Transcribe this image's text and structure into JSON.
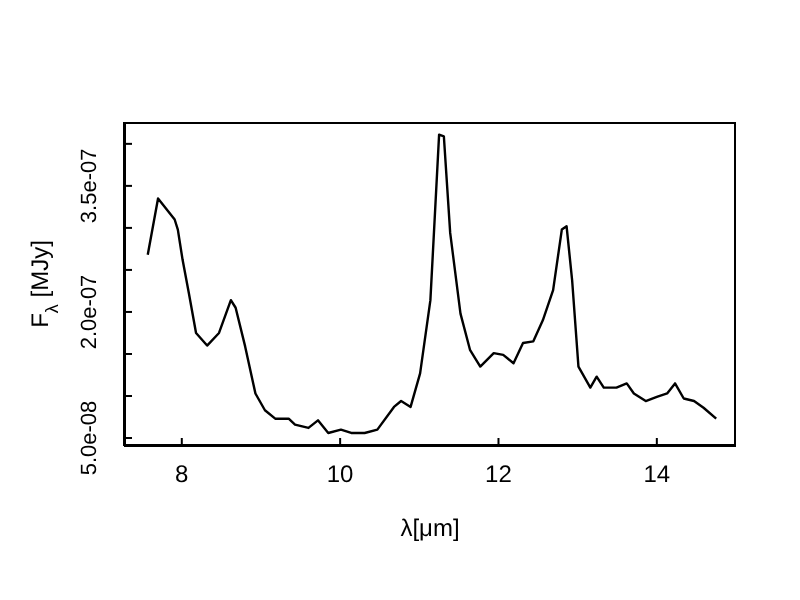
{
  "chart_data": {
    "type": "line",
    "xlabel": "λ[μm]",
    "ylabel": "F$_{λ}$ [MJy]",
    "marker": "none",
    "grid": false,
    "xlim": [
      7.27,
      15.0
    ],
    "xticks": [
      8,
      10,
      12,
      14
    ],
    "ylim": [
      4.05e-08,
      4.26e-07
    ],
    "yticks": [
      {
        "value": 5e-08,
        "label": "5.0e-08"
      },
      {
        "value": 1e-07,
        "label": null
      },
      {
        "value": 1.5e-07,
        "label": null
      },
      {
        "value": 2e-07,
        "label": "2.0e-07"
      },
      {
        "value": 2.5e-07,
        "label": null
      },
      {
        "value": 3e-07,
        "label": null
      },
      {
        "value": 3.5e-07,
        "label": "3.5e-07"
      },
      {
        "value": 4e-07,
        "label": null
      }
    ],
    "x": [
      7.57,
      7.7,
      7.91,
      7.95,
      8.01,
      8.09,
      8.18,
      8.32,
      8.47,
      8.62,
      8.68,
      8.8,
      8.93,
      9.05,
      9.18,
      9.35,
      9.43,
      9.6,
      9.72,
      9.85,
      10.01,
      10.14,
      10.31,
      10.47,
      10.68,
      10.77,
      10.89,
      11.01,
      11.14,
      11.25,
      11.31,
      11.39,
      11.52,
      11.64,
      11.77,
      11.94,
      12.06,
      12.19,
      12.31,
      12.44,
      12.56,
      12.69,
      12.8,
      12.86,
      12.93,
      13.01,
      13.16,
      13.24,
      13.33,
      13.49,
      13.62,
      13.71,
      13.86,
      14.0,
      14.13,
      14.23,
      14.34,
      14.47,
      14.59,
      14.75
    ],
    "series": [
      {
        "color": "#000000",
        "values": [
          2.68e-07,
          3.35e-07,
          3.1e-07,
          2.98e-07,
          2.62e-07,
          2.22e-07,
          1.75e-07,
          1.6e-07,
          1.75e-07,
          2.14e-07,
          2.05e-07,
          1.59e-07,
          1.03e-07,
          8.3e-08,
          7.3e-08,
          7.3e-08,
          6.6e-08,
          6.2e-08,
          7.1e-08,
          5.6e-08,
          6e-08,
          5.6e-08,
          5.6e-08,
          6e-08,
          8.7e-08,
          9.4e-08,
          8.7e-08,
          1.27e-07,
          2.14e-07,
          4.11e-07,
          4.09e-07,
          2.94e-07,
          1.98e-07,
          1.55e-07,
          1.35e-07,
          1.51e-07,
          1.49e-07,
          1.39e-07,
          1.63e-07,
          1.65e-07,
          1.9e-07,
          2.26e-07,
          2.98e-07,
          3.02e-07,
          2.38e-07,
          1.35e-07,
          1.1e-07,
          1.23e-07,
          1.1e-07,
          1.1e-07,
          1.15e-07,
          1.03e-07,
          9.4e-08,
          9.9e-08,
          1.03e-07,
          1.15e-07,
          9.7e-08,
          9.4e-08,
          8.6e-08,
          7.3e-08
        ]
      }
    ]
  }
}
